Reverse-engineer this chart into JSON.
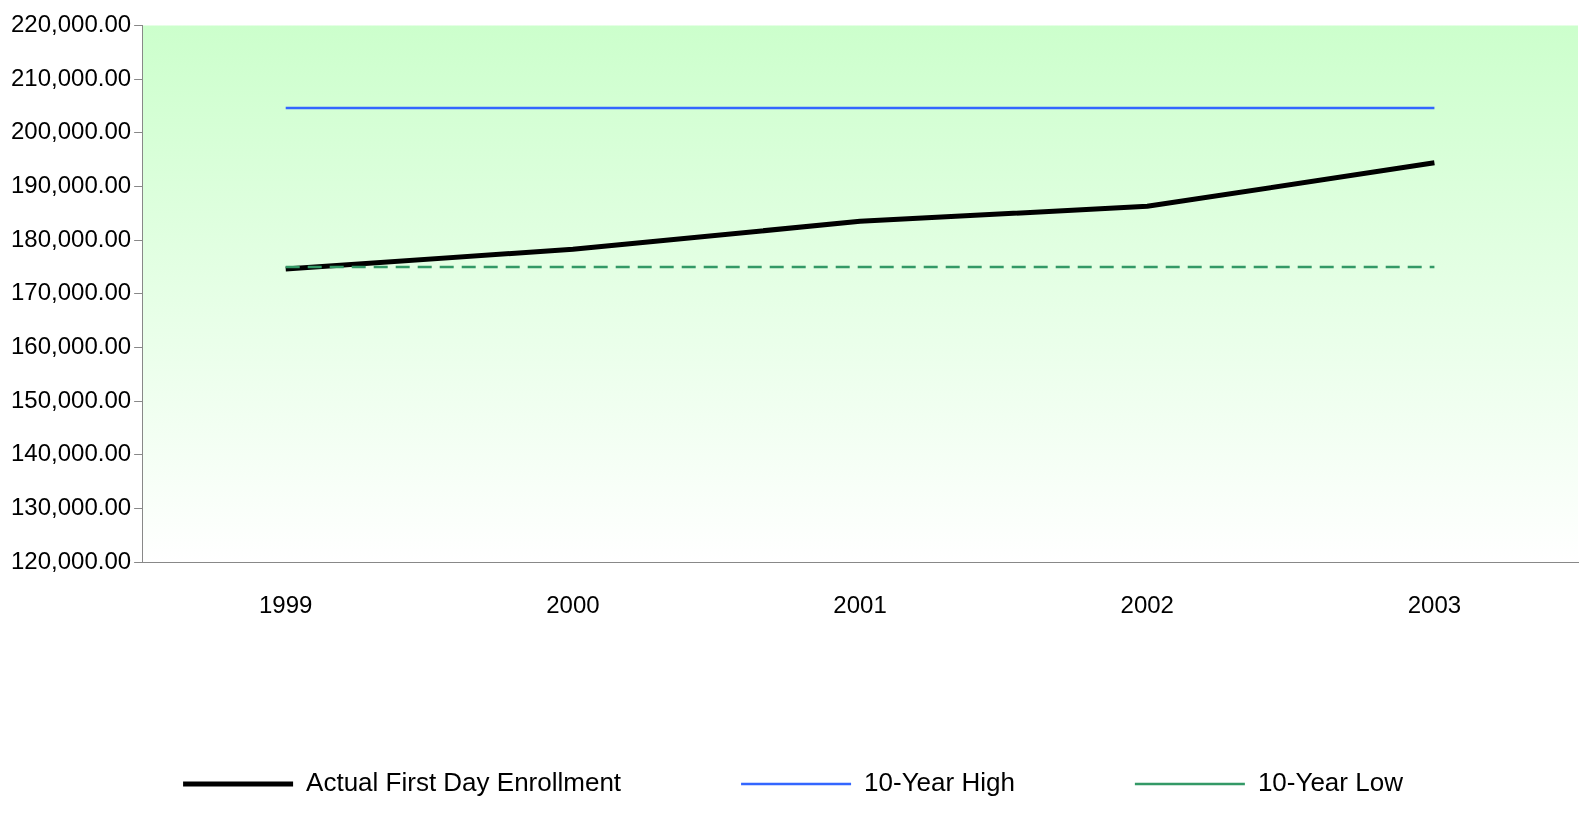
{
  "chart_data": {
    "type": "line",
    "categories": [
      "1999",
      "2000",
      "2001",
      "2002",
      "2003"
    ],
    "series": [
      {
        "name": "Actual First Day Enrollment",
        "color": "#000000",
        "values": [
          174600,
          178300,
          183500,
          186300,
          194400
        ],
        "line_style": "solid"
      },
      {
        "name": "10-Year High",
        "color": "#3366ff",
        "values": [
          204600,
          204600,
          204600,
          204600,
          204600
        ],
        "line_style": "solid"
      },
      {
        "name": "10-Year Low",
        "color": "#339966",
        "values": [
          175000,
          175000,
          175000,
          175000,
          175000
        ],
        "line_style": "dashed"
      }
    ],
    "ylim": [
      120000,
      220000
    ],
    "yticks": [
      {
        "value": 120000,
        "label": "120,000.00"
      },
      {
        "value": 130000,
        "label": "130,000.00"
      },
      {
        "value": 140000,
        "label": "140,000.00"
      },
      {
        "value": 150000,
        "label": "150,000.00"
      },
      {
        "value": 160000,
        "label": "160,000.00"
      },
      {
        "value": 170000,
        "label": "170,000.00"
      },
      {
        "value": 180000,
        "label": "180,000.00"
      },
      {
        "value": 190000,
        "label": "190,000.00"
      },
      {
        "value": 200000,
        "label": "200,000.00"
      },
      {
        "value": 210000,
        "label": "210,000.00"
      },
      {
        "value": 220000,
        "label": "220,000.00"
      }
    ],
    "legend": "bottom",
    "marker": "none"
  }
}
